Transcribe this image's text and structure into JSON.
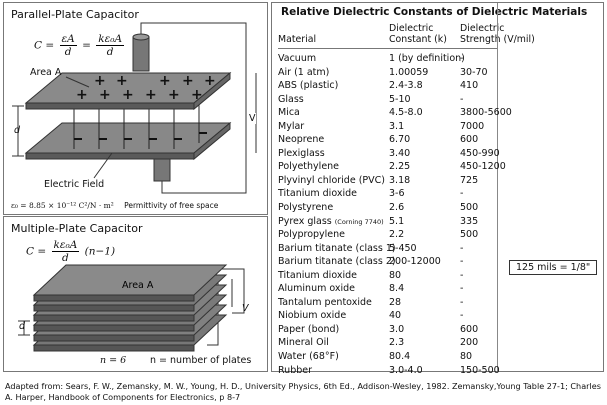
{
  "parallel": {
    "title": "Parallel-Plate Capacitor",
    "formula_lhs": "C =",
    "formula_f1_num": "εA",
    "formula_f1_den": "d",
    "formula_eq": "=",
    "formula_f2_num": "kε₀A",
    "formula_f2_den": "d",
    "area_label": "Area A",
    "d_label": "d",
    "v_label": "V",
    "field_label": "Electric Field",
    "epsilon_text": "ε₀ = 8.85 × 10⁻¹² C²/N · m²",
    "epsilon_note": "Permittivity of free space"
  },
  "multiple": {
    "title": "Multiple-Plate Capacitor",
    "formula_lhs": "C =",
    "formula_num": "kε₀A",
    "formula_den": "d",
    "formula_tail": "(n−1)",
    "area_label": "Area A",
    "d_label": "d",
    "v_label": "V",
    "n_label": "n = 6",
    "n_note": "n = number of plates"
  },
  "table": {
    "title": "Relative Dielectric Constants of Dielectric Materials",
    "col_material": "Material",
    "col_constant_1": "Dielectric",
    "col_constant_2": "Constant (k)",
    "col_strength_1": "Dielectric",
    "col_strength_2": "Strength (V/mil)",
    "rows": [
      {
        "material": "Vacuum",
        "note": "",
        "k": "1 (by definition)",
        "strength": "-"
      },
      {
        "material": "Air (1 atm)",
        "note": "",
        "k": "1.00059",
        "strength": "30-70"
      },
      {
        "material": "ABS (plastic)",
        "note": "",
        "k": "2.4-3.8",
        "strength": "410"
      },
      {
        "material": "Glass",
        "note": "",
        "k": "5-10",
        "strength": "-"
      },
      {
        "material": "Mica",
        "note": "",
        "k": "4.5-8.0",
        "strength": "3800-5600"
      },
      {
        "material": "Mylar",
        "note": "",
        "k": "3.1",
        "strength": "7000"
      },
      {
        "material": "Neoprene",
        "note": "",
        "k": "6.70",
        "strength": "600"
      },
      {
        "material": "Plexiglass",
        "note": "",
        "k": "3.40",
        "strength": "450-990"
      },
      {
        "material": "Polyethylene",
        "note": "",
        "k": "2.25",
        "strength": "450-1200"
      },
      {
        "material": "Plyvinyl chloride (PVC)",
        "note": "",
        "k": "3.18",
        "strength": "725"
      },
      {
        "material": "Titanium dioxide",
        "note": "",
        "k": "3-6",
        "strength": "-"
      },
      {
        "material": "Polystyrene",
        "note": "",
        "k": "2.6",
        "strength": "500"
      },
      {
        "material": "Pyrex glass",
        "note": "(Corning 7740)",
        "k": "5.1",
        "strength": "335"
      },
      {
        "material": "Polypropylene",
        "note": "",
        "k": "2.2",
        "strength": "500"
      },
      {
        "material": "Barium titanate (class 1)",
        "note": "",
        "k": "5-450",
        "strength": "-"
      },
      {
        "material": "Barium titanate (class 2)",
        "note": "",
        "k": "200-12000",
        "strength": "-"
      },
      {
        "material": "Titanium dioxide",
        "note": "",
        "k": "80",
        "strength": "-"
      },
      {
        "material": "Aluminum oxide",
        "note": "",
        "k": "8.4",
        "strength": "-"
      },
      {
        "material": "Tantalum pentoxide",
        "note": "",
        "k": "28",
        "strength": "-"
      },
      {
        "material": "Niobium oxide",
        "note": "",
        "k": "40",
        "strength": "-"
      },
      {
        "material": "Paper (bond)",
        "note": "",
        "k": "3.0",
        "strength": "600"
      },
      {
        "material": "Mineral Oil",
        "note": "",
        "k": "2.3",
        "strength": "200"
      },
      {
        "material": "Water (68°F)",
        "note": "",
        "k": "80.4",
        "strength": "80"
      },
      {
        "material": "Rubber",
        "note": "",
        "k": "3.0-4.0",
        "strength": "150-500"
      }
    ],
    "mils_box": "125 mils = 1/8\""
  },
  "footnote": "Adapted from: Sears, F. W., Zemansky, M. W., Young, H. D., University Physics, 6th Ed., Addison-Wesley, 1982. Zemansky,Young Table 27-1; Charles A. Harper, Handbook of Components for Electronics, p 8-7"
}
